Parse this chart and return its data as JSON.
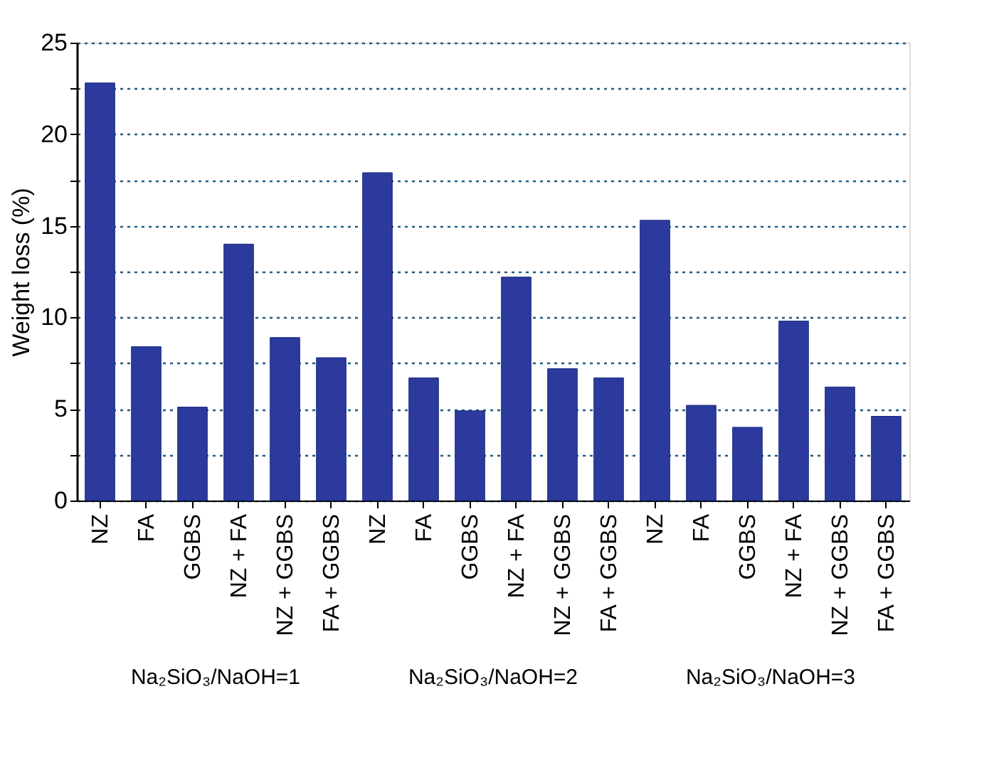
{
  "chart_data": {
    "type": "bar",
    "ylabel": "Weight loss (%)",
    "categories": [
      "NZ",
      "FA",
      "GGBS",
      "NZ + FA",
      "NZ + GGBS",
      "FA + GGBS",
      "NZ",
      "FA",
      "GGBS",
      "NZ + FA",
      "NZ + GGBS",
      "FA + GGBS",
      "NZ",
      "FA",
      "GGBS",
      "NZ + FA",
      "NZ + GGBS",
      "FA + GGBS"
    ],
    "values": [
      22.8,
      8.4,
      5.1,
      14.0,
      8.9,
      7.8,
      17.9,
      6.7,
      4.9,
      12.2,
      7.2,
      6.7,
      15.3,
      5.2,
      4.0,
      9.8,
      6.2,
      4.6
    ],
    "color": "#2b3a9c",
    "ylim": [
      0,
      25
    ],
    "yticks": [
      0,
      {
        "value": 2.5,
        "label": null
      },
      5,
      {
        "value": 7.5,
        "label": null
      },
      10,
      {
        "value": 12.5,
        "label": null
      },
      15,
      {
        "value": 17.5,
        "label": null
      },
      20,
      {
        "value": 22.5,
        "label": null
      },
      25
    ],
    "grid": "y",
    "line_style": "dotted",
    "annotations": [
      "Na₂SiO₃/NaOH=1",
      "Na₂SiO₃/NaOH=2",
      "Na₂SiO₃/NaOH=3"
    ]
  }
}
